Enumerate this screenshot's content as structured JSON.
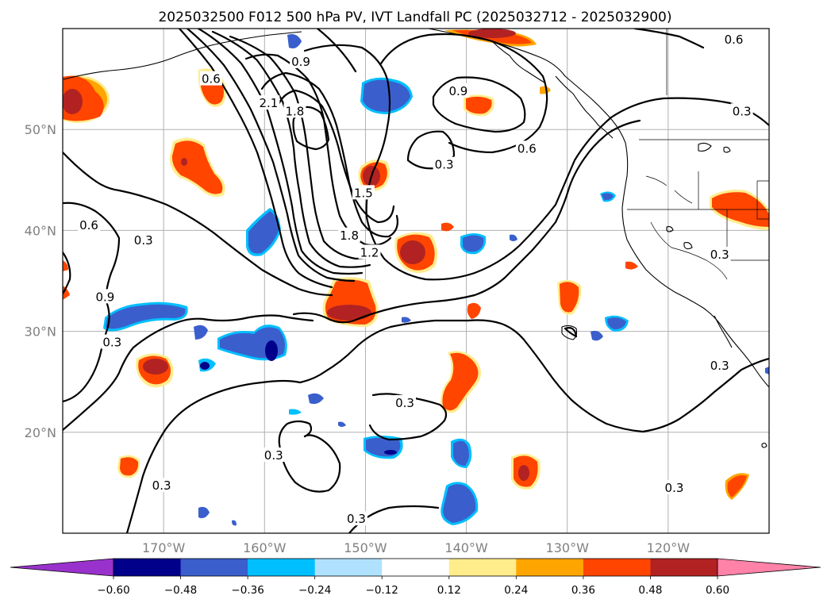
{
  "figure": {
    "title": "2025032500 F012 500 hPa PV, IVT Landfall PC (2025032712 - 2025032900)"
  },
  "map": {
    "extent": {
      "lon_min": -180,
      "lon_max": -110,
      "lat_min": 10,
      "lat_max": 60
    },
    "lat_ticks": [
      {
        "value": 20,
        "label": "20°N"
      },
      {
        "value": 30,
        "label": "30°N"
      },
      {
        "value": 40,
        "label": "40°N"
      },
      {
        "value": 50,
        "label": "50°N"
      }
    ],
    "lon_ticks": [
      {
        "value": -170,
        "label": "170°W"
      },
      {
        "value": -160,
        "label": "160°W"
      },
      {
        "value": -150,
        "label": "150°W"
      },
      {
        "value": -140,
        "label": "140°W"
      },
      {
        "value": -130,
        "label": "130°W"
      },
      {
        "value": -120,
        "label": "120°W"
      }
    ],
    "gridlines": true,
    "contour_labels": [
      {
        "text": "0.6",
        "lon": -177.4,
        "lat": 40.5
      },
      {
        "text": "0.3",
        "lon": -172.0,
        "lat": 39.0
      },
      {
        "text": "0.9",
        "lon": -175.8,
        "lat": 33.4
      },
      {
        "text": "0.3",
        "lon": -175.1,
        "lat": 28.9
      },
      {
        "text": "0.3",
        "lon": -170.2,
        "lat": 14.7
      },
      {
        "text": "0.6",
        "lon": -165.3,
        "lat": 55.0
      },
      {
        "text": "2.1",
        "lon": -159.6,
        "lat": 52.6
      },
      {
        "text": "1.8",
        "lon": -157.0,
        "lat": 51.8
      },
      {
        "text": "0.9",
        "lon": -156.4,
        "lat": 56.7
      },
      {
        "text": "1.5",
        "lon": -150.2,
        "lat": 43.7
      },
      {
        "text": "1.8",
        "lon": -151.6,
        "lat": 39.5
      },
      {
        "text": "1.2",
        "lon": -149.6,
        "lat": 37.8
      },
      {
        "text": "0.9",
        "lon": -140.8,
        "lat": 53.8
      },
      {
        "text": "0.3",
        "lon": -142.2,
        "lat": 46.5
      },
      {
        "text": "0.6",
        "lon": -134.0,
        "lat": 48.1
      },
      {
        "text": "0.6",
        "lon": -113.5,
        "lat": 58.9
      },
      {
        "text": "0.3",
        "lon": -112.7,
        "lat": 51.8
      },
      {
        "text": "0.3",
        "lon": -114.9,
        "lat": 37.6
      },
      {
        "text": "0.3",
        "lon": -114.9,
        "lat": 26.6
      },
      {
        "text": "0.3",
        "lon": -146.1,
        "lat": 22.9
      },
      {
        "text": "0.3",
        "lon": -159.1,
        "lat": 17.7
      },
      {
        "text": "0.3",
        "lon": -150.9,
        "lat": 11.4
      },
      {
        "text": "0.3",
        "lon": -119.4,
        "lat": 14.5
      }
    ],
    "colors": {
      "grid": "#b0b0b0",
      "tick_label": "#808080",
      "contour": "#000000",
      "coast": "#000000"
    }
  },
  "colorbar": {
    "tick_labels": [
      "−0.60",
      "−0.48",
      "−0.36",
      "−0.24",
      "−0.12",
      "0.12",
      "0.24",
      "0.36",
      "0.48",
      "0.60"
    ],
    "bounds": [
      -0.6,
      -0.48,
      -0.36,
      -0.24,
      -0.12,
      0.12,
      0.24,
      0.36,
      0.48,
      0.6
    ],
    "under_color": "#9932cc",
    "over_color": "#ff82a9",
    "colors": [
      "#00008b",
      "#3a5fcd",
      "#00bfff",
      "#b0e2ff",
      "#ffffff",
      "#ffec8b",
      "#ffa500",
      "#ff4500",
      "#b22222"
    ]
  }
}
